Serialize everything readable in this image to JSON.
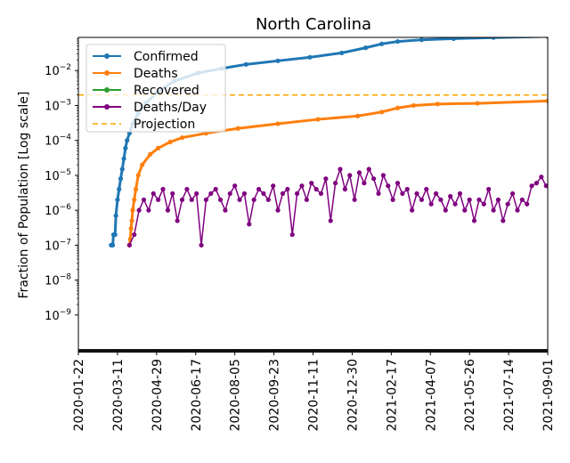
{
  "chart_data": {
    "type": "line",
    "title": "North Carolina",
    "xlabel": "",
    "ylabel": "Fraction of Population [Log scale]",
    "yscale": "log",
    "ylim": [
      8.9e-11,
      0.089
    ],
    "x_start_date": "2020-01-22",
    "x_unit": "days since 2020-01-22",
    "xlim": [
      0,
      588
    ],
    "x_ticks": [
      {
        "day": 0,
        "label": "2020-01-22"
      },
      {
        "day": 49,
        "label": "2020-03-11"
      },
      {
        "day": 98,
        "label": "2020-04-29"
      },
      {
        "day": 147,
        "label": "2020-06-17"
      },
      {
        "day": 196,
        "label": "2020-08-05"
      },
      {
        "day": 245,
        "label": "2020-09-23"
      },
      {
        "day": 294,
        "label": "2020-11-11"
      },
      {
        "day": 343,
        "label": "2020-12-30"
      },
      {
        "day": 392,
        "label": "2021-02-17"
      },
      {
        "day": 441,
        "label": "2021-04-07"
      },
      {
        "day": 490,
        "label": "2021-05-26"
      },
      {
        "day": 539,
        "label": "2021-07-14"
      },
      {
        "day": 588,
        "label": "2021-09-01"
      }
    ],
    "y_ticks": [
      {
        "value": 0.01,
        "base": "10",
        "exp": "−2"
      },
      {
        "value": 0.001,
        "base": "10",
        "exp": "−3"
      },
      {
        "value": 0.0001,
        "base": "10",
        "exp": "−4"
      },
      {
        "value": 1e-05,
        "base": "10",
        "exp": "−5"
      },
      {
        "value": 1e-06,
        "base": "10",
        "exp": "−6"
      },
      {
        "value": 1e-07,
        "base": "10",
        "exp": "−7"
      },
      {
        "value": 1e-08,
        "base": "10",
        "exp": "−8"
      },
      {
        "value": 1e-09,
        "base": "10",
        "exp": "−9"
      }
    ],
    "legend_position": "top-left",
    "series": [
      {
        "name": "Confirmed",
        "color": "#1f77b4",
        "style": "line-marker",
        "points": [
          [
            41,
            1e-07
          ],
          [
            43,
            1e-07
          ],
          [
            44,
            2e-07
          ],
          [
            46,
            2e-07
          ],
          [
            47,
            7e-07
          ],
          [
            49,
            2e-06
          ],
          [
            51,
            4e-06
          ],
          [
            53,
            8e-06
          ],
          [
            55,
            1.5e-05
          ],
          [
            57,
            3e-05
          ],
          [
            59,
            6e-05
          ],
          [
            61,
            0.0001
          ],
          [
            64,
            0.00016
          ],
          [
            68,
            0.0003
          ],
          [
            75,
            0.0006
          ],
          [
            85,
            0.0012
          ],
          [
            100,
            0.0025
          ],
          [
            120,
            0.005
          ],
          [
            150,
            0.0085
          ],
          [
            180,
            0.0115
          ],
          [
            210,
            0.015
          ],
          [
            250,
            0.019
          ],
          [
            290,
            0.024
          ],
          [
            330,
            0.032
          ],
          [
            360,
            0.045
          ],
          [
            380,
            0.058
          ],
          [
            400,
            0.068
          ],
          [
            430,
            0.076
          ],
          [
            470,
            0.082
          ],
          [
            520,
            0.088
          ],
          [
            588,
            0.095
          ]
        ]
      },
      {
        "name": "Deaths",
        "color": "#ff7f0e",
        "style": "line-marker",
        "points": [
          [
            64,
            1e-07
          ],
          [
            65,
            1.5e-07
          ],
          [
            66,
            3e-07
          ],
          [
            67,
            5e-07
          ],
          [
            68,
            1e-06
          ],
          [
            70,
            2e-06
          ],
          [
            72,
            4e-06
          ],
          [
            75,
            1e-05
          ],
          [
            80,
            2e-05
          ],
          [
            90,
            4e-05
          ],
          [
            100,
            6e-05
          ],
          [
            115,
            9e-05
          ],
          [
            130,
            0.00012
          ],
          [
            160,
            0.00016
          ],
          [
            200,
            0.00022
          ],
          [
            250,
            0.0003
          ],
          [
            300,
            0.0004
          ],
          [
            350,
            0.0005
          ],
          [
            380,
            0.00065
          ],
          [
            400,
            0.00085
          ],
          [
            420,
            0.001
          ],
          [
            450,
            0.0011
          ],
          [
            500,
            0.00115
          ],
          [
            588,
            0.00135
          ]
        ]
      },
      {
        "name": "Recovered",
        "color": "#2ca02c",
        "style": "line-marker",
        "points": []
      },
      {
        "name": "Deaths/Day",
        "color": "#800080",
        "style": "line-marker",
        "start_day": 64,
        "step_days": 6,
        "values": [
          1e-07,
          2e-07,
          1e-06,
          2e-06,
          1e-06,
          3e-06,
          2e-06,
          4e-06,
          1e-06,
          3e-06,
          5e-07,
          2e-06,
          4e-06,
          2e-06,
          3e-06,
          1e-07,
          2e-06,
          3e-06,
          4e-06,
          2e-06,
          1e-06,
          3e-06,
          5e-06,
          2e-06,
          3e-06,
          4e-07,
          2e-06,
          4e-06,
          3e-06,
          2e-06,
          5e-06,
          1e-06,
          3e-06,
          4e-06,
          2e-07,
          3e-06,
          5e-06,
          2e-06,
          6e-06,
          4e-06,
          3e-06,
          8e-06,
          5e-07,
          6e-06,
          1.5e-05,
          4e-06,
          1e-05,
          2e-06,
          1.2e-05,
          6e-06,
          1.5e-05,
          8e-06,
          3e-06,
          1e-05,
          5e-06,
          2e-06,
          6e-06,
          3e-06,
          4e-06,
          1e-06,
          3e-06,
          2e-06,
          4e-06,
          1.5e-06,
          3e-06,
          2e-06,
          1e-06,
          2.5e-06,
          1.5e-06,
          3e-06,
          1e-06,
          2e-06,
          5e-07,
          2e-06,
          1.5e-06,
          4e-06,
          1e-06,
          2e-06,
          5e-07,
          1.5e-06,
          3e-06,
          1e-06,
          2e-06,
          1.5e-06,
          5e-06,
          6e-06,
          9e-06,
          5e-06
        ]
      },
      {
        "name": "Projection",
        "color": "#ffa500",
        "style": "dashed-hline",
        "value": 0.002
      }
    ]
  }
}
